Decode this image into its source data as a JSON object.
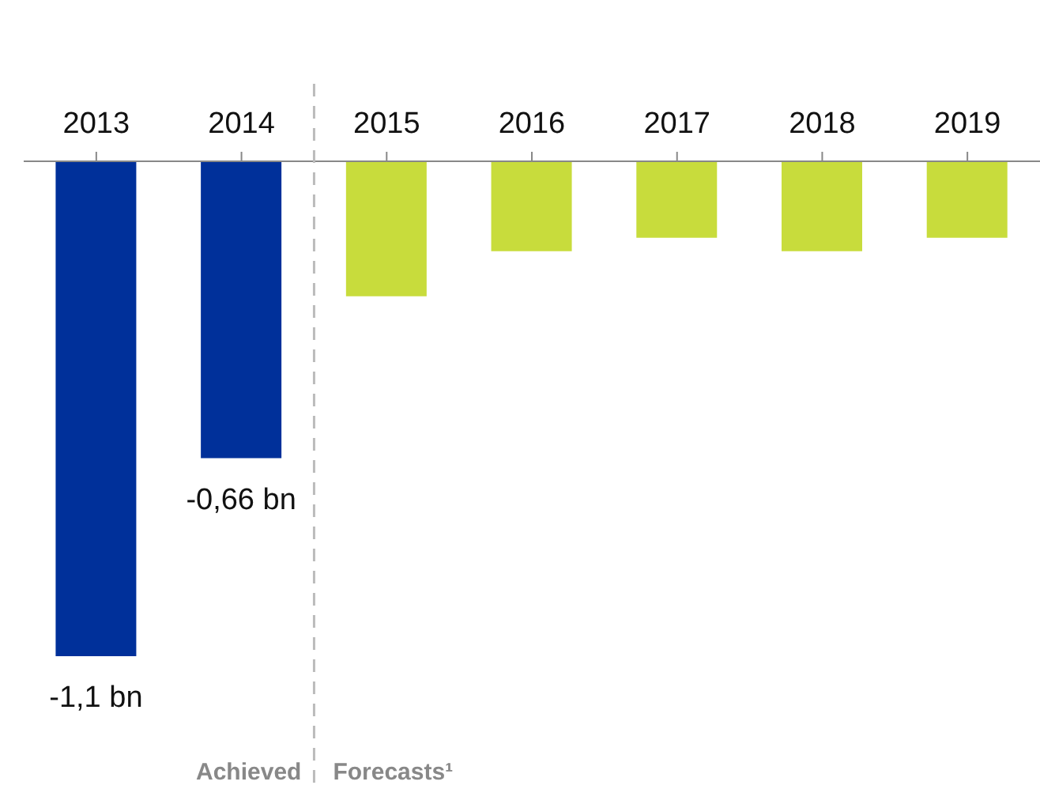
{
  "chart_data": {
    "type": "bar",
    "categories": [
      "2013",
      "2014",
      "2015",
      "2016",
      "2017",
      "2018",
      "2019"
    ],
    "values": [
      -1.1,
      -0.66,
      -0.3,
      -0.2,
      -0.17,
      -0.2,
      -0.17
    ],
    "colors": [
      "#00309a",
      "#00309a",
      "#c8dc3c",
      "#c8dc3c",
      "#c8dc3c",
      "#c8dc3c",
      "#c8dc3c"
    ],
    "value_labels": [
      "-1,1 bn",
      "-0,66 bn",
      null,
      null,
      null,
      null,
      null
    ],
    "annotations": [
      "Achieved",
      "Forecasts¹"
    ]
  }
}
